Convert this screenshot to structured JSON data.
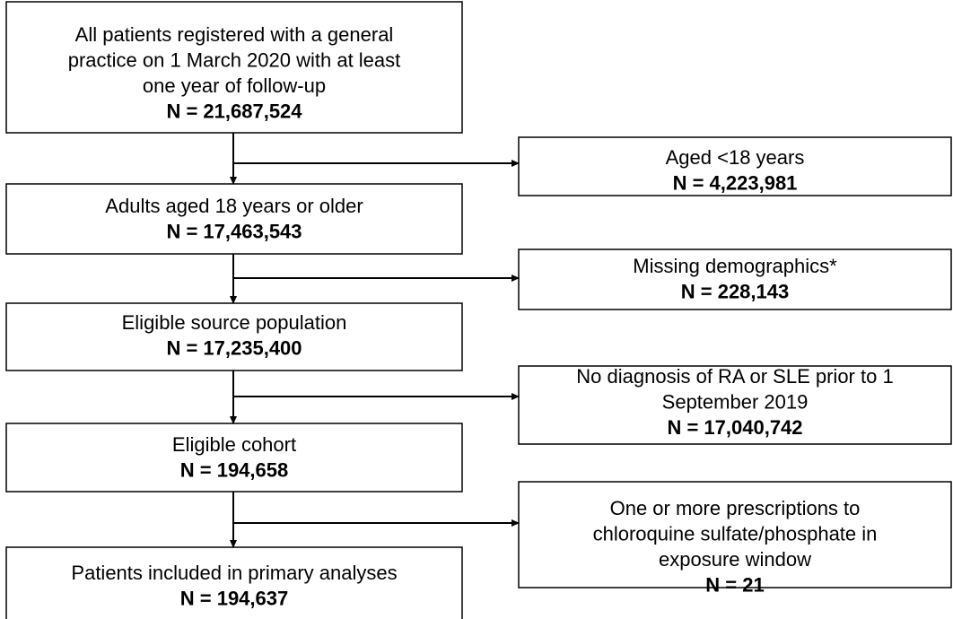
{
  "nodes": [
    {
      "lines": [
        "All patients registered with a general",
        "practice on 1 March 2020 with at least",
        "one year of follow-up"
      ],
      "n": "N = 21,687,524"
    },
    {
      "lines": [
        "Adults aged 18 years or older"
      ],
      "n": "N = 17,463,543"
    },
    {
      "lines": [
        "Eligible source population"
      ],
      "n": "N = 17,235,400"
    },
    {
      "lines": [
        "Eligible cohort"
      ],
      "n": "N = 194,658"
    },
    {
      "lines": [
        "Patients included in primary analyses"
      ],
      "n": "N = 194,637"
    }
  ],
  "exclusions": [
    {
      "lines": [
        "Aged <18 years"
      ],
      "n": "N = 4,223,981"
    },
    {
      "lines": [
        "Missing demographics*"
      ],
      "n": "N = 228,143"
    },
    {
      "lines": [
        "No diagnosis of RA or SLE prior to 1",
        "September 2019"
      ],
      "n": "N = 17,040,742"
    },
    {
      "lines": [
        "One or more prescriptions to",
        "chloroquine sulfate/phosphate in",
        "exposure window"
      ],
      "n": "N = 21"
    }
  ]
}
